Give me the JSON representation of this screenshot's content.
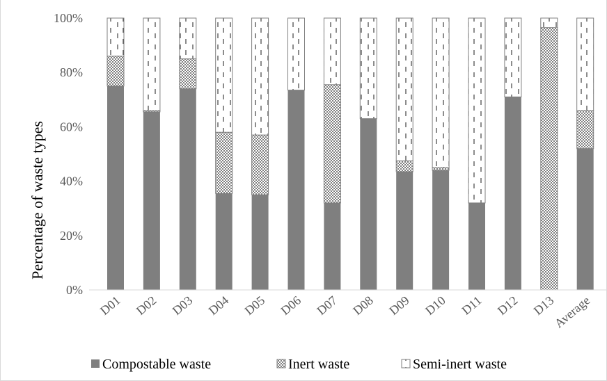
{
  "chart_data": {
    "type": "bar",
    "stacked": true,
    "percent": true,
    "categories": [
      "D01",
      "D02",
      "D03",
      "D04",
      "D05",
      "D06",
      "D07",
      "D08",
      "D09",
      "D10",
      "D11",
      "D12",
      "D13",
      "Average"
    ],
    "series": [
      {
        "name": "Compostable waste",
        "color": "#7f7f7f",
        "pattern": "solid",
        "values": [
          75,
          65.5,
          74,
          35.5,
          35,
          73.5,
          32,
          63,
          43.5,
          44,
          32,
          71,
          0,
          52
        ]
      },
      {
        "name": "Inert waste",
        "color": "#a6a6a6",
        "pattern": "crosshatch",
        "values": [
          11,
          0.5,
          11,
          22.5,
          22,
          0,
          43.5,
          0,
          4,
          1,
          0,
          0,
          96.5,
          14
        ]
      },
      {
        "name": "Semi-inert waste",
        "color": "#ffffff",
        "pattern": "dashed",
        "values": [
          14,
          34,
          15,
          42,
          43,
          26.5,
          24.5,
          37,
          52.5,
          55,
          68,
          29,
          3.5,
          34
        ]
      }
    ],
    "ylabel": "Percentage of waste types",
    "xlabel": "",
    "ylim": [
      0,
      100
    ],
    "yticks": [
      "0%",
      "20%",
      "40%",
      "60%",
      "80%",
      "100%"
    ],
    "grid": false,
    "legend_position": "bottom"
  }
}
